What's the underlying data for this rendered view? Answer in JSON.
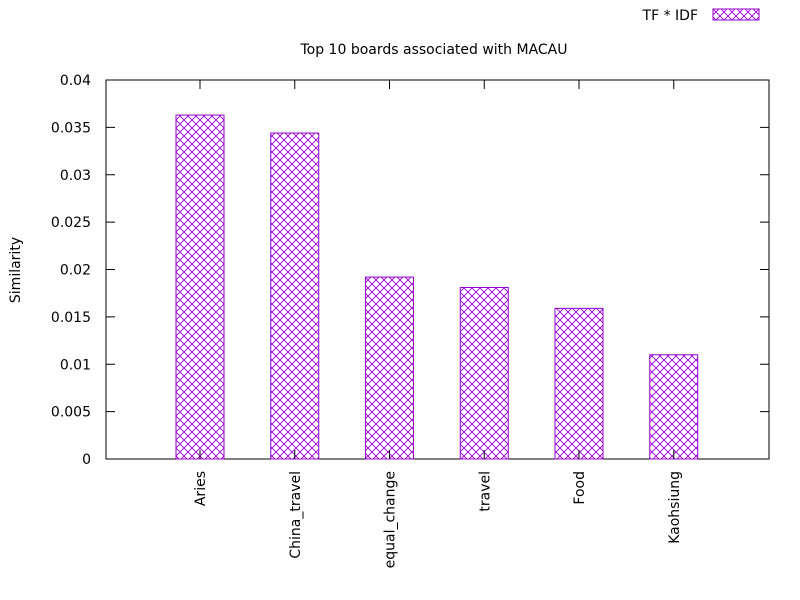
{
  "chart_data": {
    "type": "bar",
    "title": "Top 10 boards associated with MACAU",
    "xlabel": "",
    "ylabel": "Similarity",
    "ylim": [
      0,
      0.04
    ],
    "yticks": [
      "0",
      "0.005",
      "0.01",
      "0.015",
      "0.02",
      "0.025",
      "0.03",
      "0.035",
      "0.04"
    ],
    "categories": [
      "Aries",
      "China_travel",
      "equal_change",
      "travel",
      "Food",
      "Kaohsiung"
    ],
    "series": [
      {
        "name": "TF * IDF",
        "values": [
          0.0363,
          0.0344,
          0.0192,
          0.0181,
          0.0159,
          0.011
        ]
      }
    ],
    "legend_position": "top-right",
    "grid": false,
    "bar_pattern": "crosshatch",
    "bar_color": "#9400d3"
  }
}
